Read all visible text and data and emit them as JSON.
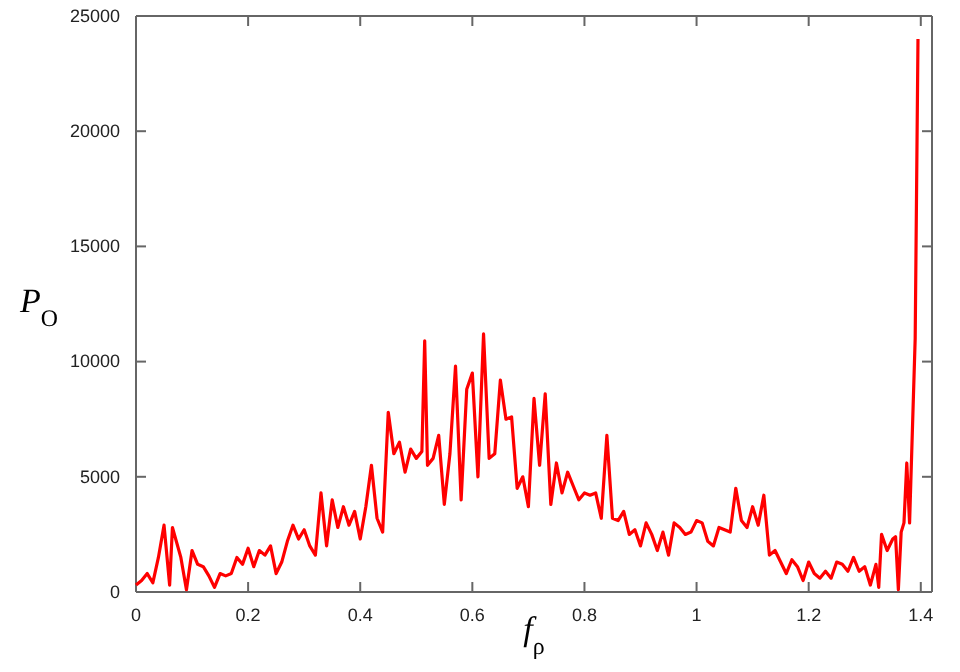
{
  "chart_data": {
    "type": "line",
    "xlabel": "f$_{ρ}$",
    "ylabel": "P$_{O}$",
    "xlim": [
      0,
      1.42
    ],
    "ylim": [
      0,
      25000
    ],
    "xticks": [
      0,
      0.2,
      0.4,
      0.6,
      0.8,
      1,
      1.2,
      1.4
    ],
    "yticks": [
      0,
      5000,
      10000,
      15000,
      20000,
      25000
    ],
    "grid": false,
    "marker": "none",
    "line_style": "solid",
    "series": [
      {
        "color": "#ff0000",
        "x": [
          0,
          0.01,
          0.02,
          0.03,
          0.04,
          0.05,
          0.06,
          0.065,
          0.08,
          0.09,
          0.1,
          0.11,
          0.12,
          0.13,
          0.14,
          0.15,
          0.16,
          0.17,
          0.18,
          0.19,
          0.2,
          0.21,
          0.22,
          0.23,
          0.24,
          0.25,
          0.26,
          0.27,
          0.28,
          0.29,
          0.3,
          0.31,
          0.32,
          0.33,
          0.34,
          0.35,
          0.36,
          0.37,
          0.38,
          0.39,
          0.4,
          0.41,
          0.42,
          0.43,
          0.44,
          0.45,
          0.46,
          0.47,
          0.48,
          0.49,
          0.5,
          0.51,
          0.515,
          0.52,
          0.53,
          0.54,
          0.55,
          0.56,
          0.57,
          0.58,
          0.59,
          0.6,
          0.61,
          0.62,
          0.63,
          0.64,
          0.65,
          0.66,
          0.67,
          0.68,
          0.69,
          0.7,
          0.71,
          0.72,
          0.73,
          0.74,
          0.75,
          0.76,
          0.77,
          0.78,
          0.79,
          0.8,
          0.81,
          0.82,
          0.83,
          0.84,
          0.85,
          0.86,
          0.87,
          0.88,
          0.89,
          0.9,
          0.91,
          0.92,
          0.93,
          0.94,
          0.95,
          0.96,
          0.97,
          0.98,
          0.99,
          1,
          1.01,
          1.02,
          1.03,
          1.04,
          1.05,
          1.06,
          1.07,
          1.08,
          1.09,
          1.1,
          1.11,
          1.12,
          1.13,
          1.14,
          1.15,
          1.16,
          1.17,
          1.18,
          1.19,
          1.2,
          1.21,
          1.22,
          1.23,
          1.24,
          1.25,
          1.26,
          1.27,
          1.28,
          1.29,
          1.3,
          1.31,
          1.32,
          1.325,
          1.33,
          1.34,
          1.35,
          1.355,
          1.36,
          1.365,
          1.37,
          1.375,
          1.38,
          1.39,
          1.395
        ],
        "values": [
          300,
          500,
          800,
          400,
          1500,
          2900,
          300,
          2800,
          1500,
          100,
          1800,
          1200,
          1100,
          700,
          200,
          800,
          700,
          800,
          1500,
          1200,
          1900,
          1100,
          1800,
          1600,
          2000,
          800,
          1300,
          2200,
          2900,
          2300,
          2700,
          2000,
          1600,
          4300,
          2000,
          4000,
          2800,
          3700,
          2900,
          3500,
          2300,
          3700,
          5500,
          3200,
          2600,
          7800,
          6000,
          6500,
          5200,
          6200,
          5800,
          6100,
          10900,
          5500,
          5800,
          6800,
          3800,
          6000,
          9800,
          4000,
          8800,
          9500,
          5000,
          11200,
          5800,
          6000,
          9200,
          7500,
          7600,
          4500,
          5000,
          3700,
          8400,
          5500,
          8600,
          3800,
          5600,
          4300,
          5200,
          4600,
          4000,
          4300,
          4200,
          4300,
          3200,
          6800,
          3200,
          3100,
          3500,
          2500,
          2700,
          2000,
          3000,
          2500,
          1800,
          2600,
          1600,
          3000,
          2800,
          2500,
          2600,
          3100,
          3000,
          2200,
          2000,
          2800,
          2700,
          2600,
          4500,
          3100,
          2800,
          3700,
          2900,
          4200,
          1600,
          1800,
          1300,
          800,
          1400,
          1100,
          500,
          1300,
          800,
          600,
          900,
          600,
          1300,
          1200,
          900,
          1500,
          900,
          1100,
          300,
          1200,
          200,
          2500,
          1800,
          2300,
          2400,
          100,
          2600,
          3000,
          5600,
          3000,
          11000,
          24000
        ]
      }
    ]
  }
}
